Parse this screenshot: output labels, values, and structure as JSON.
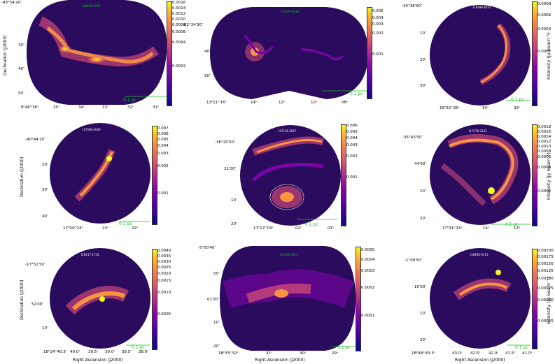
{
  "colors": {
    "background": "#2a0b5e",
    "scale": "#19c01f",
    "cmap": [
      "#0d0887",
      "#7e03a8",
      "#cc4778",
      "#f89540",
      "#f0f921"
    ]
  },
  "labels": {
    "declination": "Declination (J2000)",
    "right_ascension": "Right Ascension (J2000)",
    "intensity": "Intensity (Jy beam⁻¹)",
    "scale_bar": "0.1 pc"
  },
  "panels": [
    {
      "id": "p1",
      "source": "I08448-4343",
      "dec_ticks": [
        "-43°54′20″",
        "30″",
        "40″",
        "50″"
      ],
      "ra_ticks": [
        "8ʰ46ᵐ36ˢ",
        "35ˢ",
        "34ˢ",
        "33ˢ",
        "32ˢ",
        "31ˢ"
      ],
      "cbar_ticks": [
        "0.0016",
        "0.0014",
        "0.0012",
        "0.0010",
        "0.0008",
        "0.0006",
        "0.0004",
        "0.0002"
      ]
    },
    {
      "id": "p2",
      "source": "I13079-6218",
      "dec_ticks": [
        "-62°34′30″",
        "40″",
        "50″"
      ],
      "ra_ticks": [
        "13ʰ11ᵐ16ˢ",
        "14ˢ",
        "12ˢ",
        "10ˢ",
        "08ˢ"
      ],
      "cbar_ticks": [
        "0.005",
        "0.004",
        "0.003",
        "0.002",
        "0.001"
      ]
    },
    {
      "id": "p3",
      "source": "I16489-4431",
      "dec_ticks": [
        "-44°36′00″",
        "10″",
        "20″",
        "30″"
      ],
      "ra_ticks": [
        "16ʰ52ᵐ35ˢ",
        "34ˢ",
        "33ˢ"
      ],
      "cbar_ticks": [
        "0.0008",
        "0.0006",
        "0.0004",
        "0.0002"
      ]
    },
    {
      "id": "p4",
      "source": "I17008-4040",
      "dec_ticks": [
        "-40°44′10″",
        "20″",
        "30″",
        "40″"
      ],
      "ra_ticks": [
        "17ʰ04ᵐ24ˢ",
        "23ˢ",
        "22ˢ"
      ],
      "cbar_ticks": [
        "0.007",
        "0.006",
        "0.005",
        "0.004",
        "0.003",
        "0.002",
        "0.001"
      ]
    },
    {
      "id": "p5",
      "source": "I17136-3617",
      "dec_ticks": [
        "-36°20′50″",
        "21′00″",
        "10″",
        "20″"
      ],
      "ra_ticks": [
        "17ʰ17ᵐ03ˢ",
        "02ˢ",
        "01ˢ"
      ],
      "cbar_ticks": [
        "0.006",
        "0.005",
        "0.004",
        "0.003",
        "0.002",
        "0.001"
      ]
    },
    {
      "id": "p6",
      "source": "I17278-3541",
      "dec_ticks": [
        "-35°43′50″",
        "44′00″",
        "10″",
        "20″"
      ],
      "ra_ticks": [
        "17ʰ31ᵐ15ˢ",
        "14ˢ",
        "13ˢ"
      ],
      "cbar_ticks": [
        "0.0018",
        "0.0016",
        "0.0014",
        "0.0012",
        "0.0010",
        "0.0008",
        "0.0006",
        "0.0004",
        "0.0002"
      ]
    },
    {
      "id": "p7",
      "source": "I18117-1753",
      "dec_ticks": [
        "-17°51′50″",
        "52′00″",
        "10″"
      ],
      "ra_ticks": [
        "18ʰ14ᵐ40.5ˢ",
        "40.0ˢ",
        "39.5ˢ",
        "39.0ˢ",
        "38.5ˢ",
        "38.0ˢ"
      ],
      "cbar_ticks": [
        "0.0040",
        "0.0035",
        "0.0030",
        "0.0025",
        "0.0020",
        "0.0015",
        "0.0010",
        "0.0005"
      ]
    },
    {
      "id": "p8",
      "source": "I18308-0503",
      "dec_ticks": [
        "-5°00′40″",
        "50″",
        "01′00″",
        "10″",
        "20″"
      ],
      "ra_ticks": [
        "18ʰ33ᵐ32ˢ",
        "31ˢ",
        "30ˢ",
        "29ˢ"
      ],
      "cbar_ticks": [
        "0.0005",
        "0.0004",
        "0.0003",
        "0.0002",
        "0.0001"
      ]
    },
    {
      "id": "p9",
      "source": "I18460-0113",
      "dec_ticks": [
        "-1°09′50″",
        "10′00″",
        "10″",
        "20″"
      ],
      "ra_ticks": [
        "18ʰ48ᵐ43.5ˢ",
        "43.0ˢ",
        "42.5ˢ",
        "42.0ˢ",
        "41.5ˢ",
        "41.0ˢ"
      ],
      "cbar_ticks": [
        "0.00200",
        "0.00175",
        "0.00150",
        "0.00125",
        "0.00100",
        "0.00075",
        "0.00050",
        "0.00025"
      ]
    }
  ]
}
